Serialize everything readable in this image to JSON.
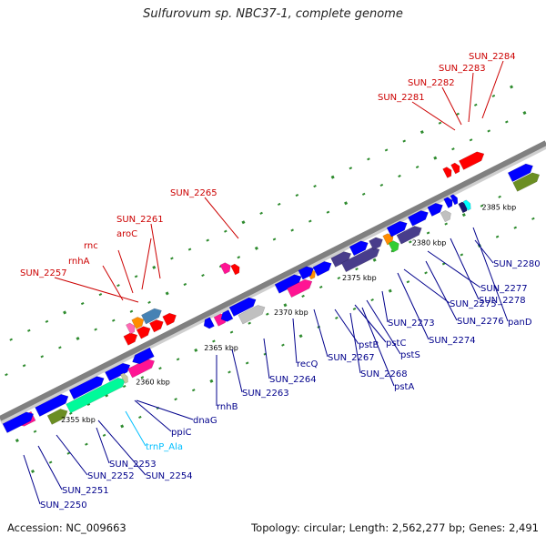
{
  "header": {
    "title": "Sulfurovum sp. NBC37-1, complete genome"
  },
  "footer": {
    "accession": "Accession: NC_009663",
    "summary": "Topology: circular; Length: 2,562,277 bp; Genes: 2,491"
  },
  "colors": {
    "backbone": "#808080",
    "top_label": "#cc0000",
    "bottom_label": "#00008b",
    "trna_label": "#00bfff",
    "tick": "#2e8b2e",
    "tick_label": "#000000"
  },
  "ruler_ticks": [
    {
      "label": "2355 kbp",
      "kbp": 2355
    },
    {
      "label": "2360 kbp",
      "kbp": 2360
    },
    {
      "label": "2365 kbp",
      "kbp": 2365
    },
    {
      "label": "2370 kbp",
      "kbp": 2370
    },
    {
      "label": "2375 kbp",
      "kbp": 2375
    },
    {
      "label": "2380 kbp",
      "kbp": 2380
    },
    {
      "label": "2385 kbp",
      "kbp": 2385
    }
  ],
  "top_labels": [
    {
      "text": "SUN_2257"
    },
    {
      "text": "rnhA"
    },
    {
      "text": "rnc"
    },
    {
      "text": "aroC"
    },
    {
      "text": "SUN_2261"
    },
    {
      "text": "SUN_2265"
    },
    {
      "text": "SUN_2281"
    },
    {
      "text": "SUN_2282"
    },
    {
      "text": "SUN_2283"
    },
    {
      "text": "SUN_2284"
    }
  ],
  "bottom_labels": [
    {
      "text": "SUN_2250"
    },
    {
      "text": "SUN_2251"
    },
    {
      "text": "SUN_2252"
    },
    {
      "text": "SUN_2253"
    },
    {
      "text": "SUN_2254"
    },
    {
      "text": "trnP_Ala"
    },
    {
      "text": "ppiC"
    },
    {
      "text": "dnaG"
    },
    {
      "text": "rnhB"
    },
    {
      "text": "SUN_2263"
    },
    {
      "text": "SUN_2264"
    },
    {
      "text": "recQ"
    },
    {
      "text": "SUN_2267"
    },
    {
      "text": "pstB"
    },
    {
      "text": "SUN_2268"
    },
    {
      "text": "pstC"
    },
    {
      "text": "pstA"
    },
    {
      "text": "pstS"
    },
    {
      "text": "SUN_2273"
    },
    {
      "text": "SUN_2274"
    },
    {
      "text": "SUN_2275"
    },
    {
      "text": "SUN_2276"
    },
    {
      "text": "SUN_2277"
    },
    {
      "text": "SUN_2278"
    },
    {
      "text": "SUN_2280"
    },
    {
      "text": "panD"
    }
  ]
}
